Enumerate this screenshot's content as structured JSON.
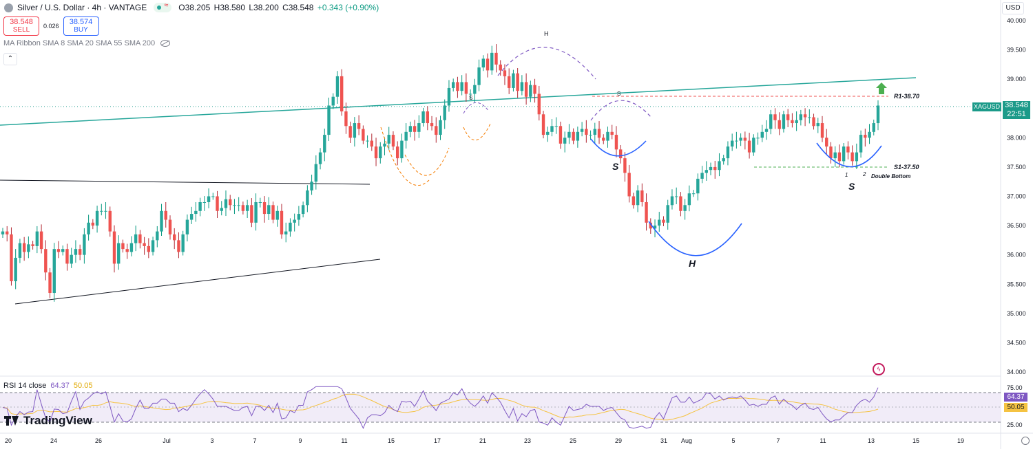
{
  "header": {
    "title": "Silver / U.S. Dollar · 4h · VANTAGE",
    "open": "O38.205",
    "high": "H38.580",
    "low": "L38.200",
    "close": "C38.548",
    "change": "+0.343 (+0.90%)"
  },
  "trade": {
    "sell_price": "38.548",
    "sell_label": "SELL",
    "spread": "0.026",
    "buy_price": "38.574",
    "buy_label": "BUY"
  },
  "indicator": {
    "ma_label": "MA Ribbon SMA 8 SMA 20 SMA 55 SMA 200",
    "collapse_icon": "chevron-up-icon"
  },
  "rsi": {
    "label": "RSI 14 close",
    "value": "64.37",
    "ma_value": "50.05"
  },
  "axis": {
    "currency": "USD",
    "symbol_tag": "XAGUSD",
    "last_price": "38.548",
    "countdown": "22:51"
  },
  "branding": {
    "logo": "TradingView"
  },
  "colors": {
    "up": "#26a69a",
    "down": "#ef5350",
    "wick_up": "#089981",
    "wick_down": "#b22833",
    "accent": "#1b9a89",
    "rsi": "#7e57c2",
    "rsi_ma": "#f5c342",
    "hs_blue": "#2962ff",
    "hs_orange": "#f57c00",
    "hs_purple": "#7e57c2"
  },
  "chart_data": {
    "type": "candlestick",
    "title": "Silver / U.S. Dollar · 4h · VANTAGE",
    "ylim": [
      34.0,
      40.0
    ],
    "y_ticks": [
      "40.000",
      "39.500",
      "39.000",
      "38.500",
      "38.000",
      "37.500",
      "37.000",
      "36.500",
      "36.000",
      "35.500",
      "35.000",
      "34.500",
      "34.000"
    ],
    "x_ticks": [
      "20",
      "24",
      "26",
      "Jul",
      "3",
      "7",
      "9",
      "11",
      "15",
      "17",
      "21",
      "23",
      "25",
      "29",
      "31",
      "Aug",
      "5",
      "7",
      "11",
      "13",
      "15",
      "19"
    ],
    "rsi_ticks": [
      "75.00",
      "25.00"
    ],
    "rsi_bands": [
      70,
      50,
      30
    ],
    "candles_close": [
      36.4,
      36.35,
      35.55,
      35.95,
      36.2,
      36.05,
      36.18,
      36.15,
      36.4,
      36.1,
      35.7,
      35.35,
      36.1,
      36.05,
      36.1,
      35.85,
      36.0,
      36.1,
      36.0,
      36.35,
      36.55,
      36.5,
      36.75,
      36.75,
      36.75,
      36.4,
      35.85,
      36.2,
      36.1,
      36.05,
      36.2,
      36.35,
      36.2,
      36.15,
      36.05,
      36.25,
      36.4,
      36.75,
      36.6,
      36.35,
      36.25,
      36.05,
      36.35,
      36.6,
      36.7,
      36.75,
      36.9,
      36.9,
      37.0,
      37.0,
      36.75,
      36.8,
      36.95,
      36.85,
      36.85,
      36.85,
      36.75,
      36.85,
      36.55,
      36.9,
      36.9,
      36.7,
      36.85,
      36.6,
      36.75,
      36.35,
      36.4,
      36.55,
      36.6,
      36.7,
      36.85,
      37.1,
      37.25,
      37.55,
      37.75,
      38.05,
      38.55,
      38.7,
      39.05,
      38.45,
      38.2,
      38.0,
      38.25,
      38.15,
      37.95,
      37.95,
      37.85,
      37.65,
      37.85,
      37.9,
      38.05,
      37.85,
      37.65,
      37.95,
      38.1,
      38.2,
      38.1,
      38.25,
      38.45,
      38.25,
      38.2,
      38.05,
      38.3,
      38.55,
      38.85,
      38.95,
      38.8,
      38.95,
      38.75,
      38.75,
      38.9,
      39.2,
      39.35,
      39.15,
      39.45,
      39.25,
      39.15,
      39.05,
      38.85,
      39.1,
      38.8,
      38.95,
      38.7,
      38.9,
      38.75,
      38.4,
      38.05,
      38.1,
      38.2,
      38.2,
      37.9,
      38.0,
      38.1,
      37.95,
      38.1,
      38.15,
      38.05,
      38.05,
      38.15,
      38.0,
      37.95,
      38.1,
      38.05,
      37.8,
      37.65,
      37.4,
      37.0,
      36.85,
      37.1,
      36.9,
      36.55,
      36.45,
      36.5,
      36.6,
      36.55,
      36.85,
      37.0,
      37.0,
      36.75,
      36.85,
      37.05,
      37.05,
      37.3,
      37.4,
      37.45,
      37.5,
      37.45,
      37.6,
      37.65,
      37.85,
      37.95,
      37.95,
      38.0,
      37.95,
      37.75,
      38.0,
      38.0,
      38.1,
      38.15,
      38.4,
      38.3,
      38.15,
      38.4,
      38.3,
      38.25,
      38.3,
      38.4,
      38.35,
      38.35,
      38.2,
      38.25,
      38.0,
      37.85,
      37.65,
      37.75,
      37.6,
      37.85,
      37.75,
      37.6,
      37.75,
      38.05,
      38.0,
      38.1,
      38.25,
      38.55
    ]
  },
  "annotations": {
    "resistance": "R1-38.70",
    "support": "S1-37.50",
    "double_bottom": "Double Bottom",
    "bottom_1": "1",
    "bottom_2": "2",
    "h_label": "H",
    "s_label": "S"
  }
}
